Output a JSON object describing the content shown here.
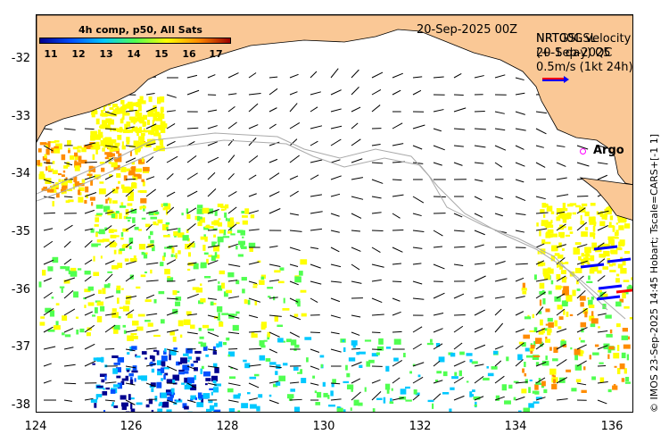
{
  "map": {
    "date": "20-Sep-2025 00Z",
    "colorbar": {
      "title": "4h comp, p50, All Sats",
      "ticks": [
        "11",
        "12",
        "13",
        "14",
        "15",
        "16",
        "17"
      ],
      "colors": [
        "#00008f",
        "#0050ff",
        "#00c8ff",
        "#50ff50",
        "#ffff00",
        "#ff8c00",
        "#9b0000"
      ]
    },
    "legend": {
      "line1": "NRT00GSL",
      "line1_overlay": "NRTGSL velocity",
      "line2": "20-Sep-2025",
      "line2_overlay": "(+-1 day) QC",
      "speed": "0.5m/s (1kt 24h)",
      "arrow_color": "#0000ff",
      "arrow_color2": "#ff0000"
    },
    "argo": {
      "label": "Argo",
      "color": "#ff00ff"
    },
    "credit": "© IMOS 23-Sep-2025 14:45 Hobart; Tscale=CARS+[-1 1]",
    "x_ticks": [
      "124",
      "126",
      "128",
      "130",
      "132",
      "134",
      "136"
    ],
    "y_ticks": [
      "-32",
      "-33",
      "-34",
      "-35",
      "-36",
      "-37",
      "-38"
    ],
    "land_color": "#fac896"
  }
}
